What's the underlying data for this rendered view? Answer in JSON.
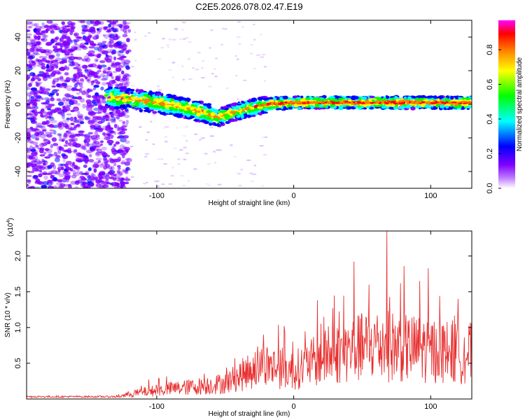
{
  "title": "C2E5.2026.078.02.47.E19",
  "chart_data": [
    {
      "type": "heatmap",
      "name": "spectrogram",
      "xlabel": "Height of straight line (km)",
      "ylabel": "Frequency (Hz)",
      "xlim": [
        -195,
        130
      ],
      "ylim": [
        -50,
        50
      ],
      "xticks": [
        -100,
        0,
        100
      ],
      "yticks": [
        -40,
        -20,
        0,
        20,
        40
      ],
      "colorbar": {
        "label": "Normalized spectral amplitude",
        "range": [
          0,
          0.97
        ],
        "ticks": [
          0.0,
          0.2,
          0.4,
          0.6,
          0.8
        ],
        "colors": [
          "#ffffff",
          "#8000ff",
          "#0000ff",
          "#00ffff",
          "#00ff00",
          "#ffff00",
          "#ff8000",
          "#ff0000",
          "#ff00ff"
        ]
      },
      "signal_track": [
        {
          "x": -135,
          "y": 4
        },
        {
          "x": -120,
          "y": 3
        },
        {
          "x": -100,
          "y": 1
        },
        {
          "x": -80,
          "y": -2
        },
        {
          "x": -65,
          "y": -5
        },
        {
          "x": -55,
          "y": -8
        },
        {
          "x": -45,
          "y": -5
        },
        {
          "x": -35,
          "y": -3
        },
        {
          "x": -20,
          "y": 0
        },
        {
          "x": 0,
          "y": 1
        },
        {
          "x": 50,
          "y": 1
        },
        {
          "x": 130,
          "y": 1
        }
      ]
    },
    {
      "type": "line",
      "name": "snr",
      "xlabel": "Height of straight line (km)",
      "ylabel": "SNR (10 * v/v)",
      "y_scale_label": "(x10",
      "y_scale_exponent": "4",
      "y_scale_suffix": ")",
      "xlim": [
        -195,
        130
      ],
      "ylim": [
        0,
        2.35
      ],
      "xticks": [
        -100,
        0,
        100
      ],
      "yticks": [
        0.5,
        1.0,
        1.5,
        2.0
      ],
      "color": "#e83030",
      "envelope": [
        {
          "x": -195,
          "y": 0.03
        },
        {
          "x": -130,
          "y": 0.04
        },
        {
          "x": -110,
          "y": 0.12
        },
        {
          "x": -90,
          "y": 0.18
        },
        {
          "x": -70,
          "y": 0.22
        },
        {
          "x": -50,
          "y": 0.28
        },
        {
          "x": -35,
          "y": 0.45
        },
        {
          "x": -25,
          "y": 0.6
        },
        {
          "x": -10,
          "y": 0.55
        },
        {
          "x": 0,
          "y": 0.5
        },
        {
          "x": 20,
          "y": 0.7
        },
        {
          "x": 40,
          "y": 0.85
        },
        {
          "x": 60,
          "y": 0.95
        },
        {
          "x": 80,
          "y": 0.9
        },
        {
          "x": 100,
          "y": 0.85
        },
        {
          "x": 130,
          "y": 0.8
        }
      ],
      "peaks": [
        {
          "x": -22,
          "y": 0.9
        },
        {
          "x": -7,
          "y": 1.02
        },
        {
          "x": 22,
          "y": 1.15
        },
        {
          "x": 44,
          "y": 1.92
        },
        {
          "x": 55,
          "y": 1.6
        },
        {
          "x": 68,
          "y": 2.35
        },
        {
          "x": 78,
          "y": 1.62
        },
        {
          "x": 92,
          "y": 1.65
        },
        {
          "x": 120,
          "y": 1.4
        }
      ]
    }
  ]
}
